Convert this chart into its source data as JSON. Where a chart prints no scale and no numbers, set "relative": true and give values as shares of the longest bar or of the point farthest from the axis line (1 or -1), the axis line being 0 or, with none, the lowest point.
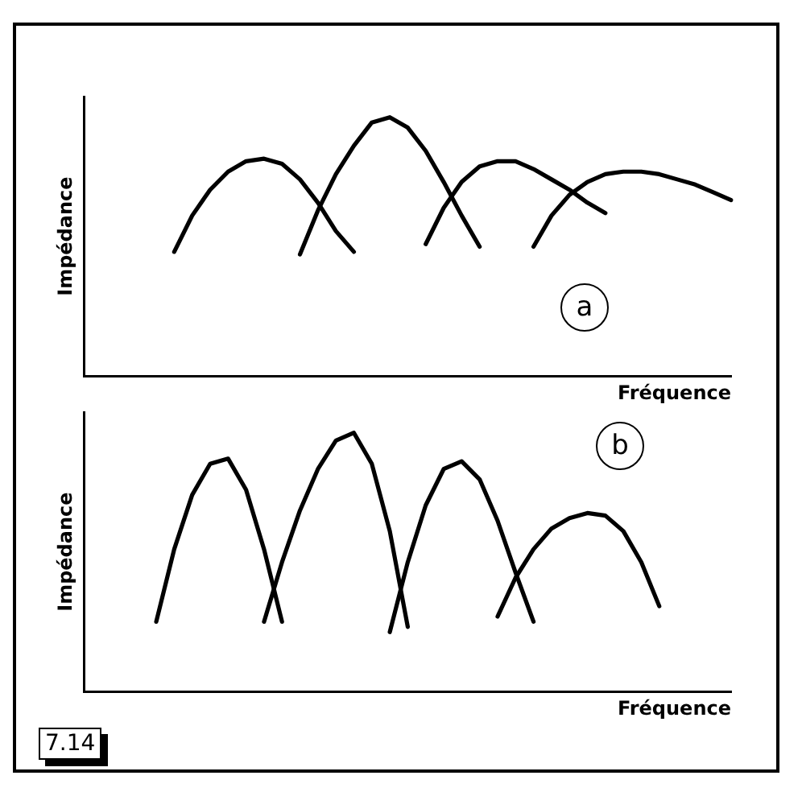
{
  "chart_data": [
    {
      "type": "line",
      "relative": true,
      "xlabel": "Fréquence",
      "ylabel": "Impédance",
      "grid": false,
      "legend": false,
      "annotations": [
        "a"
      ],
      "categories": [
        null,
        null,
        null,
        null,
        null,
        null,
        null,
        null,
        null,
        null,
        null,
        null,
        null,
        null,
        null,
        null,
        null,
        null,
        null,
        null,
        null,
        null,
        null,
        null,
        null,
        null,
        null,
        null,
        null,
        null,
        null,
        null,
        null,
        null,
        null,
        null,
        null
      ],
      "series": [
        {
          "color": "#000000",
          "values": [
            null,
            null,
            null,
            null,
            null,
            0.48,
            0.62,
            0.72,
            0.79,
            0.83,
            0.84,
            0.82,
            0.76,
            0.67,
            0.56,
            0.48,
            null,
            null,
            null,
            null,
            null,
            null,
            null,
            null,
            null,
            null,
            null,
            null,
            null,
            null,
            null,
            null,
            null,
            null,
            null,
            null,
            null
          ]
        },
        {
          "color": "#000000",
          "values": [
            null,
            null,
            null,
            null,
            null,
            null,
            null,
            null,
            null,
            null,
            null,
            null,
            0.47,
            0.64,
            0.78,
            0.89,
            0.98,
            1.0,
            0.96,
            0.87,
            0.75,
            0.62,
            0.5,
            null,
            null,
            null,
            null,
            null,
            null,
            null,
            null,
            null,
            null,
            null,
            null,
            null,
            null
          ]
        },
        {
          "color": "#000000",
          "values": [
            null,
            null,
            null,
            null,
            null,
            null,
            null,
            null,
            null,
            null,
            null,
            null,
            null,
            null,
            null,
            null,
            null,
            null,
            null,
            0.51,
            0.65,
            0.75,
            0.81,
            0.83,
            0.83,
            0.8,
            0.76,
            0.72,
            0.67,
            0.63,
            null,
            null,
            null,
            null,
            null,
            null,
            null
          ]
        },
        {
          "color": "#000000",
          "values": [
            null,
            null,
            null,
            null,
            null,
            null,
            null,
            null,
            null,
            null,
            null,
            null,
            null,
            null,
            null,
            null,
            null,
            null,
            null,
            null,
            null,
            null,
            null,
            null,
            null,
            0.5,
            0.62,
            0.7,
            0.75,
            0.78,
            0.79,
            0.79,
            0.78,
            0.76,
            0.74,
            0.71,
            0.68
          ]
        }
      ]
    },
    {
      "type": "line",
      "relative": true,
      "xlabel": "Fréquence",
      "ylabel": "Impédance",
      "grid": false,
      "legend": false,
      "annotations": [
        "b",
        "7.14"
      ],
      "categories": [
        null,
        null,
        null,
        null,
        null,
        null,
        null,
        null,
        null,
        null,
        null,
        null,
        null,
        null,
        null,
        null,
        null,
        null,
        null,
        null,
        null,
        null,
        null,
        null,
        null,
        null,
        null,
        null,
        null,
        null,
        null,
        null,
        null,
        null,
        null,
        null,
        null
      ],
      "series": [
        {
          "color": "#000000",
          "values": [
            null,
            null,
            null,
            null,
            0.27,
            0.55,
            0.76,
            0.88,
            0.9,
            0.78,
            0.55,
            0.27,
            null,
            null,
            null,
            null,
            null,
            null,
            null,
            null,
            null,
            null,
            null,
            null,
            null,
            null,
            null,
            null,
            null,
            null,
            null,
            null,
            null,
            null,
            null,
            null,
            null
          ]
        },
        {
          "color": "#000000",
          "values": [
            null,
            null,
            null,
            null,
            null,
            null,
            null,
            null,
            null,
            null,
            0.27,
            0.5,
            0.7,
            0.86,
            0.97,
            1.0,
            0.88,
            0.62,
            0.25,
            null,
            null,
            null,
            null,
            null,
            null,
            null,
            null,
            null,
            null,
            null,
            null,
            null,
            null,
            null,
            null,
            null,
            null
          ]
        },
        {
          "color": "#000000",
          "values": [
            null,
            null,
            null,
            null,
            null,
            null,
            null,
            null,
            null,
            null,
            null,
            null,
            null,
            null,
            null,
            null,
            null,
            0.23,
            0.5,
            0.72,
            0.86,
            0.89,
            0.82,
            0.66,
            0.46,
            0.27,
            null,
            null,
            null,
            null,
            null,
            null,
            null,
            null,
            null,
            null,
            null
          ]
        },
        {
          "color": "#000000",
          "values": [
            null,
            null,
            null,
            null,
            null,
            null,
            null,
            null,
            null,
            null,
            null,
            null,
            null,
            null,
            null,
            null,
            null,
            null,
            null,
            null,
            null,
            null,
            null,
            0.29,
            0.44,
            0.55,
            0.63,
            0.67,
            0.69,
            0.68,
            0.62,
            0.5,
            0.33,
            null,
            null,
            null,
            null
          ]
        }
      ]
    }
  ]
}
